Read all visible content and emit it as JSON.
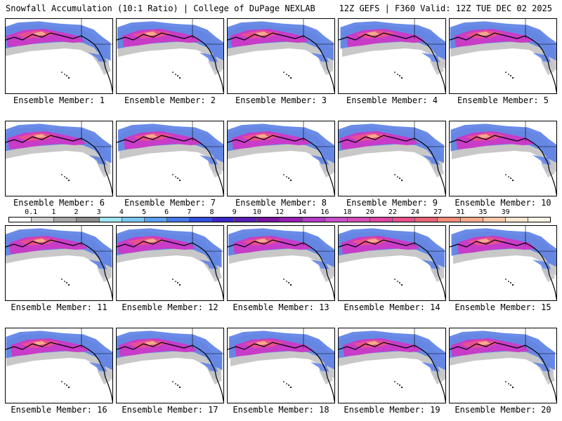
{
  "header": {
    "left_title": "Snowfall Accumulation (10:1 Ratio) | College of DuPage NEXLAB",
    "right_title": "12Z GEFS | F360 Valid: 12Z TUE DEC 02 2025"
  },
  "panels": [
    {
      "label": "Ensemble Member: 1"
    },
    {
      "label": "Ensemble Member: 2"
    },
    {
      "label": "Ensemble Member: 3"
    },
    {
      "label": "Ensemble Member: 4"
    },
    {
      "label": "Ensemble Member: 5"
    },
    {
      "label": "Ensemble Member: 6"
    },
    {
      "label": "Ensemble Member: 7"
    },
    {
      "label": "Ensemble Member: 8"
    },
    {
      "label": "Ensemble Member: 9"
    },
    {
      "label": "Ensemble Member: 10"
    },
    {
      "label": "Ensemble Member: 11"
    },
    {
      "label": "Ensemble Member: 12"
    },
    {
      "label": "Ensemble Member: 13"
    },
    {
      "label": "Ensemble Member: 14"
    },
    {
      "label": "Ensemble Member: 15"
    },
    {
      "label": "Ensemble Member: 16"
    },
    {
      "label": "Ensemble Member: 17"
    },
    {
      "label": "Ensemble Member: 18"
    },
    {
      "label": "Ensemble Member: 19"
    },
    {
      "label": "Ensemble Member: 20"
    }
  ],
  "colorbar": {
    "labels": [
      "0.1",
      "1",
      "2",
      "3",
      "4",
      "5",
      "6",
      "7",
      "8",
      "9",
      "10",
      "12",
      "14",
      "16",
      "18",
      "20",
      "22",
      "24",
      "27",
      "31",
      "35",
      "39"
    ],
    "colors": [
      "#ffffff",
      "#d0d0d0",
      "#a8a8a8",
      "#8c8c8c",
      "#a0e6f0",
      "#78c8f0",
      "#5aa0f0",
      "#4678e6",
      "#3250dc",
      "#3c28c8",
      "#5a1eb4",
      "#7814a0",
      "#9a1eb4",
      "#b43cc8",
      "#c850c8",
      "#d24eb4",
      "#dc46a0",
      "#e6508c",
      "#e66478",
      "#f08c78",
      "#f5aa8c",
      "#fac8aa",
      "#fce6d2",
      "#fff5e6"
    ]
  }
}
